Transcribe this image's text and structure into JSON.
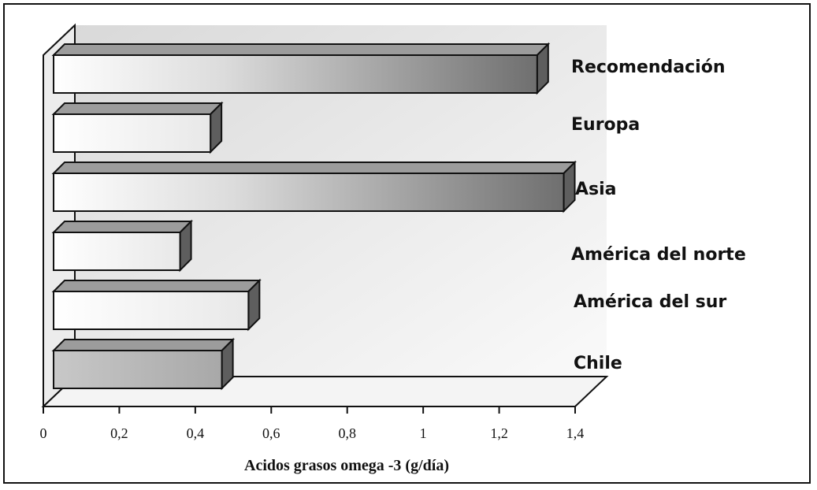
{
  "chart_data": {
    "type": "bar",
    "orientation": "horizontal",
    "style": "3d",
    "categories": [
      "Recomendación",
      "Europa",
      "Asia",
      "América del norte",
      "América del sur",
      "Chile"
    ],
    "values": [
      1.3,
      0.44,
      1.37,
      0.36,
      0.54,
      0.47
    ],
    "xlabel": "Acidos grasos omega -3 (g/día)",
    "xlim": [
      0,
      1.4
    ],
    "xticks": [
      "0",
      "0,2",
      "0,4",
      "0,6",
      "0,8",
      "1",
      "1,2",
      "1,4"
    ],
    "grid": false,
    "legend": "none"
  }
}
